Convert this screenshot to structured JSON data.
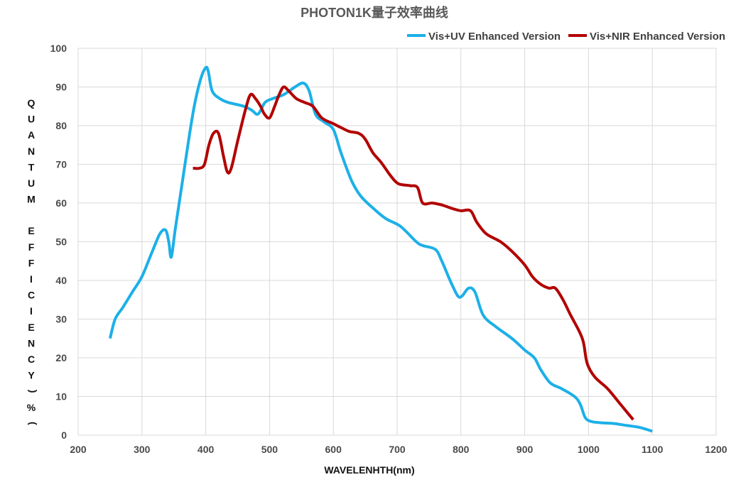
{
  "chart_data": {
    "type": "line",
    "title": "PHOTON1K量子效率曲线",
    "xlabel": "WAVELENHTH(nm)",
    "ylabel": "QUANTUM EFFICIENCY(%)",
    "ylabel_chars": [
      "Q",
      "U",
      "A",
      "N",
      "T",
      "U",
      "M",
      "",
      "E",
      "F",
      "F",
      "I",
      "C",
      "I",
      "E",
      "N",
      "C",
      "Y",
      "(",
      "%",
      ")"
    ],
    "xlim": [
      200,
      1200
    ],
    "ylim": [
      0,
      100
    ],
    "x_ticks": [
      200,
      300,
      400,
      500,
      600,
      700,
      800,
      900,
      1000,
      1100,
      1200
    ],
    "y_ticks": [
      0,
      10,
      20,
      30,
      40,
      50,
      60,
      70,
      80,
      90,
      100
    ],
    "grid": true,
    "legend_position": "top-right",
    "series": [
      {
        "name": "Vis+UV Enhanced Version",
        "color": "#1CB0E8",
        "points": [
          [
            250,
            25
          ],
          [
            258,
            30
          ],
          [
            270,
            33
          ],
          [
            285,
            37
          ],
          [
            300,
            41
          ],
          [
            315,
            47
          ],
          [
            328,
            52
          ],
          [
            337,
            53
          ],
          [
            342,
            50
          ],
          [
            346,
            46
          ],
          [
            352,
            53
          ],
          [
            362,
            64
          ],
          [
            372,
            75
          ],
          [
            382,
            85
          ],
          [
            392,
            92
          ],
          [
            400,
            95
          ],
          [
            404,
            94
          ],
          [
            410,
            89
          ],
          [
            422,
            87
          ],
          [
            435,
            86
          ],
          [
            460,
            85
          ],
          [
            472,
            84
          ],
          [
            482,
            83
          ],
          [
            493,
            86
          ],
          [
            505,
            87
          ],
          [
            522,
            88
          ],
          [
            540,
            90
          ],
          [
            553,
            91
          ],
          [
            562,
            89
          ],
          [
            572,
            83
          ],
          [
            585,
            81
          ],
          [
            600,
            79
          ],
          [
            612,
            73
          ],
          [
            628,
            66
          ],
          [
            642,
            62
          ],
          [
            660,
            59
          ],
          [
            682,
            56
          ],
          [
            705,
            54
          ],
          [
            730,
            50
          ],
          [
            740,
            49
          ],
          [
            760,
            48
          ],
          [
            770,
            45
          ],
          [
            783,
            40
          ],
          [
            795,
            36
          ],
          [
            802,
            36
          ],
          [
            812,
            38
          ],
          [
            822,
            37
          ],
          [
            835,
            31
          ],
          [
            855,
            28
          ],
          [
            880,
            25
          ],
          [
            900,
            22
          ],
          [
            915,
            20
          ],
          [
            925,
            17
          ],
          [
            940,
            13.5
          ],
          [
            958,
            12
          ],
          [
            978,
            10
          ],
          [
            987,
            8
          ],
          [
            995,
            4.5
          ],
          [
            1005,
            3.5
          ],
          [
            1020,
            3.2
          ],
          [
            1040,
            3
          ],
          [
            1060,
            2.5
          ],
          [
            1080,
            2
          ],
          [
            1100,
            1
          ]
        ]
      },
      {
        "name": "Vis+NIR Enhanced Version",
        "color": "#B20000",
        "points": [
          [
            380,
            69
          ],
          [
            390,
            69
          ],
          [
            398,
            70
          ],
          [
            405,
            75
          ],
          [
            412,
            78
          ],
          [
            420,
            78
          ],
          [
            428,
            72
          ],
          [
            434,
            68
          ],
          [
            440,
            69
          ],
          [
            450,
            76
          ],
          [
            462,
            84
          ],
          [
            470,
            88
          ],
          [
            478,
            87
          ],
          [
            486,
            85
          ],
          [
            492,
            83
          ],
          [
            500,
            82
          ],
          [
            508,
            85
          ],
          [
            515,
            88
          ],
          [
            522,
            90
          ],
          [
            530,
            89
          ],
          [
            542,
            87
          ],
          [
            555,
            86
          ],
          [
            568,
            85
          ],
          [
            582,
            82
          ],
          [
            600,
            80.5
          ],
          [
            612,
            79.5
          ],
          [
            625,
            78.5
          ],
          [
            640,
            78
          ],
          [
            650,
            76.5
          ],
          [
            662,
            73
          ],
          [
            675,
            70.5
          ],
          [
            690,
            67
          ],
          [
            702,
            65
          ],
          [
            720,
            64.5
          ],
          [
            732,
            64
          ],
          [
            740,
            60
          ],
          [
            755,
            60
          ],
          [
            770,
            59.5
          ],
          [
            788,
            58.5
          ],
          [
            800,
            58
          ],
          [
            815,
            58
          ],
          [
            825,
            55
          ],
          [
            840,
            52
          ],
          [
            862,
            50
          ],
          [
            880,
            47.5
          ],
          [
            900,
            44
          ],
          [
            912,
            41
          ],
          [
            925,
            39
          ],
          [
            938,
            38
          ],
          [
            948,
            38
          ],
          [
            960,
            35
          ],
          [
            972,
            31
          ],
          [
            985,
            27
          ],
          [
            992,
            24
          ],
          [
            998,
            18.5
          ],
          [
            1010,
            15
          ],
          [
            1030,
            12
          ],
          [
            1050,
            8
          ],
          [
            1070,
            4
          ]
        ]
      }
    ]
  }
}
